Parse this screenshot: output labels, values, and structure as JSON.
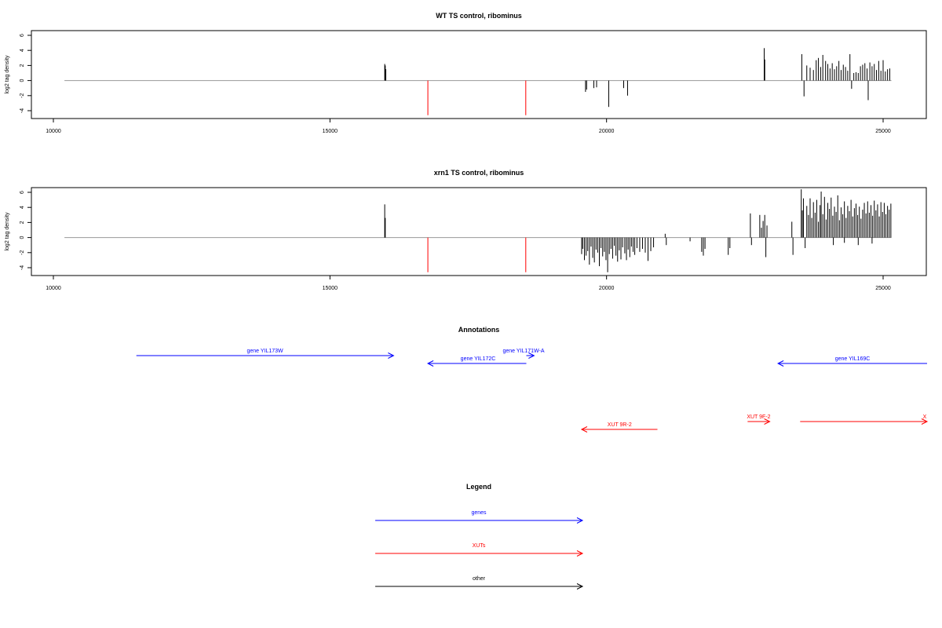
{
  "panels": [
    {
      "title": "WT TS control, ribominus"
    },
    {
      "title": "xrn1 TS control, ribominus"
    }
  ],
  "annotations": {
    "title": "Annotations",
    "features": [
      {
        "label": "gene YIL173W",
        "type": "genes",
        "strand": "+",
        "start": 11500,
        "end": 16150
      },
      {
        "label": "gene YIL172C",
        "type": "genes",
        "strand": "-",
        "start": 16770,
        "end": 18550
      },
      {
        "label": "gene YIL171W-A",
        "type": "genes",
        "strand": "+",
        "start": 18550,
        "end": 18690
      },
      {
        "label": "gene YIL169C",
        "type": "genes",
        "strand": "-",
        "start": 23100,
        "end": 25800
      },
      {
        "label": "XUT 9R-2",
        "type": "XUTs",
        "strand": "-",
        "start": 19550,
        "end": 20920
      },
      {
        "label": "XUT 9F-2",
        "type": "XUTs",
        "strand": "+",
        "start": 22550,
        "end": 22950
      },
      {
        "label": "X",
        "type": "XUTs",
        "strand": "+",
        "start": 23500,
        "end": 25800
      }
    ]
  },
  "legend": {
    "title": "Legend",
    "items": [
      {
        "label": "genes",
        "color": "#0000ff"
      },
      {
        "label": "XUTs",
        "color": "#ff0000"
      },
      {
        "label": "other",
        "color": "#000000"
      }
    ]
  },
  "colors": {
    "genes": "#0000ff",
    "XUTs": "#ff0000",
    "other": "#000000",
    "baseline": "#999999"
  },
  "chart_data": [
    {
      "type": "bar",
      "title": "WT TS control, ribominus",
      "ylabel": "log2 tag density",
      "xlim": [
        9900,
        25800
      ],
      "ylim": [
        -5,
        7
      ],
      "xticks": [
        10000,
        15000,
        20000,
        25000
      ],
      "yticks": [
        -4,
        -2,
        0,
        2,
        4,
        6
      ],
      "baseline": [
        10200,
        25150
      ],
      "red_marks": [
        {
          "x": 16770,
          "y": -4.6
        },
        {
          "x": 18540,
          "y": -4.6
        }
      ],
      "bars": [
        [
          15990,
          2.2
        ],
        [
          16000,
          2.0
        ],
        [
          16010,
          1.5
        ],
        [
          19620,
          -1.5
        ],
        [
          19640,
          -1.2
        ],
        [
          19770,
          -1.0
        ],
        [
          19820,
          -0.9
        ],
        [
          20040,
          -3.5
        ],
        [
          20310,
          -1.0
        ],
        [
          20380,
          -2.0
        ],
        [
          22850,
          4.3
        ],
        [
          22860,
          2.8
        ],
        [
          23530,
          3.5
        ],
        [
          23570,
          -2.1
        ],
        [
          23620,
          2.0
        ],
        [
          23680,
          1.7
        ],
        [
          23740,
          1.4
        ],
        [
          23790,
          2.7
        ],
        [
          23830,
          3.0
        ],
        [
          23870,
          1.8
        ],
        [
          23910,
          3.4
        ],
        [
          23960,
          2.6
        ],
        [
          24000,
          2.2
        ],
        [
          24040,
          1.6
        ],
        [
          24080,
          2.3
        ],
        [
          24120,
          1.5
        ],
        [
          24160,
          1.9
        ],
        [
          24200,
          2.6
        ],
        [
          24240,
          1.4
        ],
        [
          24280,
          2.1
        ],
        [
          24320,
          1.8
        ],
        [
          24360,
          1.3
        ],
        [
          24400,
          3.5
        ],
        [
          24430,
          -1.1
        ],
        [
          24470,
          1.0
        ],
        [
          24510,
          1.1
        ],
        [
          24550,
          1.0
        ],
        [
          24590,
          1.9
        ],
        [
          24630,
          2.1
        ],
        [
          24670,
          2.3
        ],
        [
          24710,
          1.6
        ],
        [
          24730,
          -2.6
        ],
        [
          24760,
          2.4
        ],
        [
          24800,
          1.9
        ],
        [
          24840,
          2.2
        ],
        [
          24880,
          1.4
        ],
        [
          24920,
          2.6
        ],
        [
          24960,
          1.3
        ],
        [
          25000,
          2.7
        ],
        [
          25040,
          1.2
        ],
        [
          25080,
          1.5
        ],
        [
          25120,
          1.6
        ]
      ]
    },
    {
      "type": "bar",
      "title": "xrn1 TS control, ribominus",
      "ylabel": "log2 tag density",
      "xlim": [
        9900,
        25800
      ],
      "ylim": [
        -5,
        7
      ],
      "xticks": [
        10000,
        15000,
        20000,
        25000
      ],
      "yticks": [
        -4,
        -2,
        0,
        2,
        4,
        6
      ],
      "baseline": [
        10200,
        25150
      ],
      "red_marks": [
        {
          "x": 16770,
          "y": -4.6
        },
        {
          "x": 18540,
          "y": -4.6
        }
      ],
      "bars": [
        [
          15990,
          4.4
        ],
        [
          16000,
          2.6
        ],
        [
          19550,
          -2.2
        ],
        [
          19570,
          -1.5
        ],
        [
          19600,
          -3.0
        ],
        [
          19630,
          -2.4
        ],
        [
          19660,
          -1.8
        ],
        [
          19690,
          -3.6
        ],
        [
          19720,
          -1.2
        ],
        [
          19750,
          -2.7
        ],
        [
          19780,
          -3.3
        ],
        [
          19810,
          -1.6
        ],
        [
          19840,
          -2.0
        ],
        [
          19870,
          -3.8
        ],
        [
          19900,
          -1.4
        ],
        [
          19930,
          -2.5
        ],
        [
          19960,
          -1.9
        ],
        [
          19990,
          -3.0
        ],
        [
          20020,
          -4.6
        ],
        [
          20050,
          -2.2
        ],
        [
          20080,
          -1.5
        ],
        [
          20110,
          -2.8
        ],
        [
          20140,
          -1.1
        ],
        [
          20170,
          -2.4
        ],
        [
          20200,
          -3.2
        ],
        [
          20230,
          -1.7
        ],
        [
          20260,
          -2.9
        ],
        [
          20290,
          -1.3
        ],
        [
          20330,
          -2.1
        ],
        [
          20360,
          -3.0
        ],
        [
          20390,
          -1.6
        ],
        [
          20420,
          -2.6
        ],
        [
          20450,
          -1.2
        ],
        [
          20480,
          -1.9
        ],
        [
          20510,
          -2.3
        ],
        [
          20550,
          -1.4
        ],
        [
          20600,
          -1.9
        ],
        [
          20650,
          -1.5
        ],
        [
          20700,
          -2.0
        ],
        [
          20750,
          -3.1
        ],
        [
          20800,
          -1.8
        ],
        [
          20850,
          -1.3
        ],
        [
          21060,
          0.5
        ],
        [
          21080,
          -1.0
        ],
        [
          21510,
          -0.5
        ],
        [
          21720,
          -1.9
        ],
        [
          21750,
          -2.4
        ],
        [
          21780,
          -1.5
        ],
        [
          22200,
          -2.3
        ],
        [
          22230,
          -1.4
        ],
        [
          22600,
          3.2
        ],
        [
          22620,
          -1.0
        ],
        [
          22770,
          3.0
        ],
        [
          22800,
          1.3
        ],
        [
          22830,
          2.2
        ],
        [
          22860,
          3.0
        ],
        [
          22880,
          -2.6
        ],
        [
          22900,
          1.6
        ],
        [
          23350,
          2.1
        ],
        [
          23370,
          -2.3
        ],
        [
          23520,
          6.4
        ],
        [
          23540,
          3.6
        ],
        [
          23560,
          5.2
        ],
        [
          23590,
          -1.4
        ],
        [
          23620,
          4.2
        ],
        [
          23650,
          3.0
        ],
        [
          23680,
          5.2
        ],
        [
          23710,
          2.6
        ],
        [
          23740,
          4.7
        ],
        [
          23770,
          3.3
        ],
        [
          23800,
          5.0
        ],
        [
          23830,
          2.1
        ],
        [
          23860,
          4.3
        ],
        [
          23880,
          6.1
        ],
        [
          23910,
          3.1
        ],
        [
          23940,
          5.4
        ],
        [
          23970,
          2.4
        ],
        [
          24000,
          4.6
        ],
        [
          24030,
          3.8
        ],
        [
          24060,
          5.3
        ],
        [
          24090,
          2.9
        ],
        [
          24120,
          4.1
        ],
        [
          24150,
          3.4
        ],
        [
          24180,
          5.6
        ],
        [
          24210,
          2.3
        ],
        [
          24240,
          4.0
        ],
        [
          24270,
          3.1
        ],
        [
          24300,
          4.8
        ],
        [
          24330,
          2.6
        ],
        [
          24360,
          4.2
        ],
        [
          24390,
          3.5
        ],
        [
          24420,
          5.0
        ],
        [
          24450,
          2.8
        ],
        [
          24480,
          3.9
        ],
        [
          24510,
          4.5
        ],
        [
          24540,
          3.0
        ],
        [
          24570,
          4.1
        ],
        [
          24600,
          2.5
        ],
        [
          24630,
          3.7
        ],
        [
          24660,
          4.6
        ],
        [
          24690,
          3.2
        ],
        [
          24720,
          4.8
        ],
        [
          24750,
          3.3
        ],
        [
          24780,
          4.3
        ],
        [
          24810,
          2.9
        ],
        [
          24840,
          4.9
        ],
        [
          24870,
          3.6
        ],
        [
          24900,
          4.4
        ],
        [
          24930,
          2.8
        ],
        [
          24960,
          4.7
        ],
        [
          24990,
          3.4
        ],
        [
          25020,
          4.6
        ],
        [
          25050,
          3.1
        ],
        [
          25080,
          4.2
        ],
        [
          25110,
          3.7
        ],
        [
          25140,
          4.5
        ],
        [
          24100,
          -1.0
        ],
        [
          24300,
          -0.7
        ],
        [
          24550,
          -1.0
        ],
        [
          24800,
          -0.8
        ]
      ]
    }
  ]
}
